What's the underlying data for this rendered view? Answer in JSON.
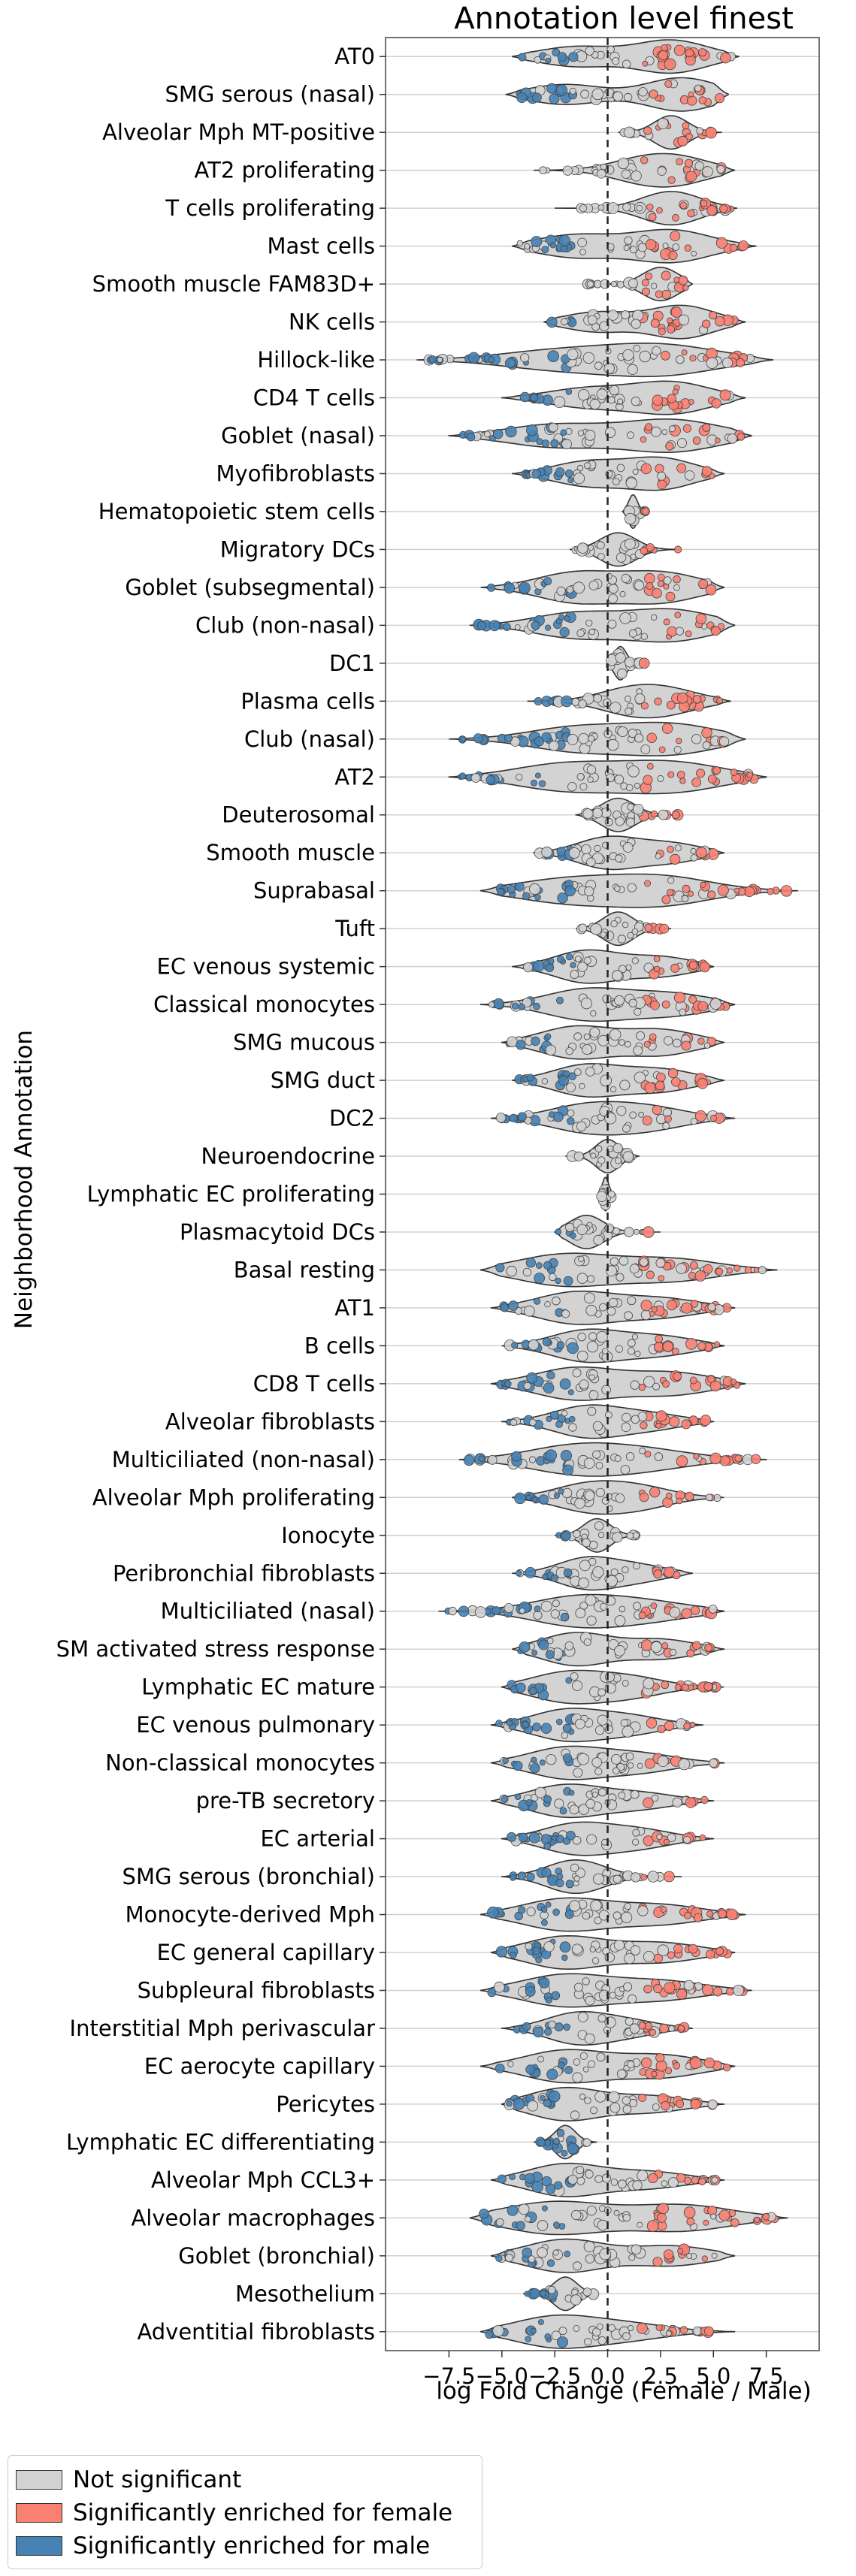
{
  "chart_data": {
    "type": "violin",
    "title": "Annotation level finest",
    "xlabel": "log Fold Change (Female / Male)",
    "ylabel": "Neighborhood Annotation",
    "xlim": [
      -10.5,
      10.0
    ],
    "xticks": [
      -7.5,
      -5.0,
      -2.5,
      0.0,
      2.5,
      5.0,
      7.5
    ],
    "xtick_labels": [
      "−7.5",
      "−5.0",
      "−2.5",
      "0.0",
      "2.5",
      "5.0",
      "7.5"
    ],
    "reference_line_x": 0,
    "grid": "horizontal",
    "legend_position": "below",
    "legend": [
      {
        "label": "Not significant",
        "color": "#d3d3d3"
      },
      {
        "label": "Significantly enriched for female",
        "color": "#fa8072"
      },
      {
        "label": "Significantly enriched for male",
        "color": "#4682b4"
      }
    ],
    "categories": [
      {
        "name": "AT0",
        "min": -4.5,
        "max": 6.2,
        "modes": [
          [
            -1.5,
            0.6
          ],
          [
            3.0,
            1.0
          ]
        ]
      },
      {
        "name": "SMG serous (nasal)",
        "min": -4.8,
        "max": 5.7,
        "modes": [
          [
            -2.0,
            0.6
          ],
          [
            3.5,
            1.0
          ]
        ]
      },
      {
        "name": "Alveolar Mph MT-positive",
        "min": 0.5,
        "max": 5.4,
        "modes": [
          [
            3.0,
            1.0
          ]
        ]
      },
      {
        "name": "AT2 proliferating",
        "min": -3.5,
        "max": 6.0,
        "modes": [
          [
            1.5,
            0.7
          ],
          [
            3.5,
            0.8
          ]
        ]
      },
      {
        "name": "T cells proliferating",
        "min": -2.5,
        "max": 6.1,
        "modes": [
          [
            3.0,
            1.0
          ]
        ]
      },
      {
        "name": "Mast cells",
        "min": -4.5,
        "max": 7.0,
        "modes": [
          [
            -1.5,
            0.7
          ],
          [
            3.0,
            1.0
          ]
        ]
      },
      {
        "name": "Smooth muscle FAM83D+",
        "min": -1.2,
        "max": 4.0,
        "modes": [
          [
            2.5,
            1.0
          ]
        ]
      },
      {
        "name": "NK cells",
        "min": -3.0,
        "max": 6.5,
        "modes": [
          [
            -0.5,
            0.6
          ],
          [
            3.5,
            1.0
          ]
        ]
      },
      {
        "name": "Hillock-like",
        "min": -9.0,
        "max": 7.8,
        "modes": [
          [
            -2.5,
            0.6
          ],
          [
            2.5,
            1.0
          ]
        ]
      },
      {
        "name": "CD4 T cells",
        "min": -5.0,
        "max": 6.5,
        "modes": [
          [
            -1.0,
            0.6
          ],
          [
            3.0,
            1.0
          ]
        ]
      },
      {
        "name": "Goblet (nasal)",
        "min": -7.5,
        "max": 6.8,
        "modes": [
          [
            -2.5,
            0.7
          ],
          [
            3.0,
            1.0
          ]
        ]
      },
      {
        "name": "Myofibroblasts",
        "min": -4.5,
        "max": 5.5,
        "modes": [
          [
            -1.0,
            0.7
          ],
          [
            2.5,
            0.9
          ]
        ]
      },
      {
        "name": "Hematopoietic stem cells",
        "min": 0.7,
        "max": 2.0,
        "modes": [
          [
            1.2,
            1.0
          ]
        ]
      },
      {
        "name": "Migratory DCs",
        "min": -1.8,
        "max": 3.5,
        "modes": [
          [
            0.5,
            1.0
          ]
        ]
      },
      {
        "name": "Goblet (subsegmental)",
        "min": -6.0,
        "max": 5.5,
        "modes": [
          [
            -1.5,
            0.9
          ],
          [
            2.5,
            0.9
          ]
        ]
      },
      {
        "name": "Club (non-nasal)",
        "min": -6.5,
        "max": 6.0,
        "modes": [
          [
            -1.5,
            0.8
          ],
          [
            3.0,
            1.0
          ]
        ]
      },
      {
        "name": "DC1",
        "min": 0.0,
        "max": 1.8,
        "modes": [
          [
            0.6,
            1.0
          ]
        ]
      },
      {
        "name": "Plasma cells",
        "min": -3.8,
        "max": 5.8,
        "modes": [
          [
            1.0,
            0.8
          ],
          [
            3.0,
            0.7
          ]
        ]
      },
      {
        "name": "Club (nasal)",
        "min": -7.5,
        "max": 6.5,
        "modes": [
          [
            -1.5,
            0.8
          ],
          [
            3.0,
            1.0
          ]
        ]
      },
      {
        "name": "AT2",
        "min": -7.5,
        "max": 7.5,
        "modes": [
          [
            -2.0,
            0.9
          ],
          [
            3.0,
            1.0
          ]
        ]
      },
      {
        "name": "Deuterosomal",
        "min": -1.5,
        "max": 3.5,
        "modes": [
          [
            0.5,
            1.0
          ]
        ]
      },
      {
        "name": "Smooth muscle",
        "min": -3.5,
        "max": 5.5,
        "modes": [
          [
            0.0,
            1.0
          ],
          [
            3.0,
            0.6
          ]
        ]
      },
      {
        "name": "Suprabasal",
        "min": -6.0,
        "max": 9.0,
        "modes": [
          [
            -2.0,
            0.8
          ],
          [
            2.5,
            1.0
          ]
        ]
      },
      {
        "name": "Tuft",
        "min": -1.5,
        "max": 3.0,
        "modes": [
          [
            0.5,
            1.0
          ]
        ]
      },
      {
        "name": "EC venous systemic",
        "min": -4.5,
        "max": 5.0,
        "modes": [
          [
            -1.0,
            1.0
          ],
          [
            2.5,
            0.6
          ]
        ]
      },
      {
        "name": "Classical monocytes",
        "min": -6.0,
        "max": 6.0,
        "modes": [
          [
            -1.0,
            1.0
          ],
          [
            3.0,
            0.7
          ]
        ]
      },
      {
        "name": "SMG mucous",
        "min": -5.0,
        "max": 5.5,
        "modes": [
          [
            -1.5,
            1.0
          ],
          [
            2.5,
            0.8
          ]
        ]
      },
      {
        "name": "SMG duct",
        "min": -4.5,
        "max": 5.5,
        "modes": [
          [
            -1.0,
            1.0
          ],
          [
            2.5,
            0.7
          ]
        ]
      },
      {
        "name": "DC2",
        "min": -5.5,
        "max": 6.0,
        "modes": [
          [
            -1.0,
            1.0
          ],
          [
            2.0,
            0.8
          ]
        ]
      },
      {
        "name": "Neuroendocrine",
        "min": -2.0,
        "max": 1.5,
        "modes": [
          [
            0.0,
            1.0
          ]
        ]
      },
      {
        "name": "Lymphatic EC proliferating",
        "min": -0.3,
        "max": 0.2,
        "modes": [
          [
            -0.1,
            1.0
          ]
        ]
      },
      {
        "name": "Plasmacytoid DCs",
        "min": -2.5,
        "max": 2.5,
        "modes": [
          [
            -1.0,
            1.0
          ]
        ]
      },
      {
        "name": "Basal resting",
        "min": -6.0,
        "max": 8.0,
        "modes": [
          [
            -2.0,
            1.0
          ],
          [
            3.0,
            0.7
          ]
        ]
      },
      {
        "name": "AT1",
        "min": -5.5,
        "max": 6.0,
        "modes": [
          [
            -1.5,
            1.0
          ],
          [
            2.5,
            0.6
          ]
        ]
      },
      {
        "name": "B cells",
        "min": -5.0,
        "max": 5.5,
        "modes": [
          [
            -1.0,
            1.0
          ],
          [
            2.5,
            0.6
          ]
        ]
      },
      {
        "name": "CD8 T cells",
        "min": -5.5,
        "max": 6.5,
        "modes": [
          [
            -1.5,
            1.0
          ],
          [
            3.0,
            0.7
          ]
        ]
      },
      {
        "name": "Alveolar fibroblasts",
        "min": -5.0,
        "max": 5.0,
        "modes": [
          [
            -1.0,
            1.0
          ],
          [
            2.0,
            0.5
          ]
        ]
      },
      {
        "name": "Multiciliated (non-nasal)",
        "min": -7.0,
        "max": 7.5,
        "modes": [
          [
            -1.5,
            1.0
          ],
          [
            2.0,
            0.6
          ]
        ]
      },
      {
        "name": "Alveolar Mph proliferating",
        "min": -4.5,
        "max": 5.5,
        "modes": [
          [
            -1.0,
            1.0
          ],
          [
            1.5,
            0.8
          ]
        ]
      },
      {
        "name": "Ionocyte",
        "min": -2.5,
        "max": 1.5,
        "modes": [
          [
            -0.5,
            1.0
          ]
        ]
      },
      {
        "name": "Peribronchial fibroblasts",
        "min": -4.5,
        "max": 4.0,
        "modes": [
          [
            -1.0,
            1.0
          ],
          [
            1.5,
            0.5
          ]
        ]
      },
      {
        "name": "Multiciliated (nasal)",
        "min": -8.0,
        "max": 5.5,
        "modes": [
          [
            -1.5,
            1.0
          ],
          [
            2.0,
            0.6
          ]
        ]
      },
      {
        "name": "SM activated stress response",
        "min": -4.5,
        "max": 5.5,
        "modes": [
          [
            -1.5,
            1.0
          ],
          [
            2.5,
            0.6
          ]
        ]
      },
      {
        "name": "Lymphatic EC mature",
        "min": -5.0,
        "max": 5.5,
        "modes": [
          [
            -2.0,
            1.0
          ],
          [
            1.0,
            0.7
          ]
        ]
      },
      {
        "name": "EC venous pulmonary",
        "min": -5.5,
        "max": 4.5,
        "modes": [
          [
            -2.0,
            1.0
          ],
          [
            1.0,
            0.6
          ]
        ]
      },
      {
        "name": "Non-classical monocytes",
        "min": -5.5,
        "max": 5.5,
        "modes": [
          [
            -2.0,
            1.0
          ],
          [
            1.5,
            0.6
          ]
        ]
      },
      {
        "name": "pre-TB secretory",
        "min": -5.5,
        "max": 5.0,
        "modes": [
          [
            -2.0,
            1.0
          ],
          [
            1.5,
            0.5
          ]
        ]
      },
      {
        "name": "EC arterial",
        "min": -5.0,
        "max": 5.0,
        "modes": [
          [
            -1.5,
            1.0
          ],
          [
            1.5,
            0.6
          ]
        ]
      },
      {
        "name": "SMG serous (bronchial)",
        "min": -5.0,
        "max": 3.5,
        "modes": [
          [
            -1.5,
            1.0
          ]
        ]
      },
      {
        "name": "Monocyte-derived Mph",
        "min": -6.0,
        "max": 6.5,
        "modes": [
          [
            -2.0,
            1.0
          ],
          [
            2.5,
            0.6
          ]
        ]
      },
      {
        "name": "EC general capillary",
        "min": -5.5,
        "max": 6.0,
        "modes": [
          [
            -2.0,
            1.0
          ],
          [
            2.5,
            0.6
          ]
        ]
      },
      {
        "name": "Subpleural fibroblasts",
        "min": -6.0,
        "max": 6.8,
        "modes": [
          [
            -2.0,
            1.0
          ],
          [
            2.5,
            0.6
          ]
        ]
      },
      {
        "name": "Interstitial Mph perivascular",
        "min": -5.0,
        "max": 4.0,
        "modes": [
          [
            -1.5,
            1.0
          ],
          [
            1.0,
            0.5
          ]
        ]
      },
      {
        "name": "EC aerocyte capillary",
        "min": -6.0,
        "max": 6.0,
        "modes": [
          [
            -2.0,
            1.0
          ],
          [
            2.5,
            0.7
          ]
        ]
      },
      {
        "name": "Pericytes",
        "min": -5.0,
        "max": 5.5,
        "modes": [
          [
            -2.0,
            1.0
          ],
          [
            2.0,
            0.5
          ]
        ]
      },
      {
        "name": "Lymphatic EC differentiating",
        "min": -3.5,
        "max": -0.5,
        "modes": [
          [
            -2.0,
            1.0
          ]
        ]
      },
      {
        "name": "Alveolar Mph CCL3+",
        "min": -5.5,
        "max": 5.5,
        "modes": [
          [
            -2.0,
            1.0
          ],
          [
            2.0,
            0.5
          ]
        ]
      },
      {
        "name": "Alveolar macrophages",
        "min": -6.5,
        "max": 8.5,
        "modes": [
          [
            -2.5,
            1.0
          ],
          [
            3.5,
            0.8
          ]
        ]
      },
      {
        "name": "Goblet (bronchial)",
        "min": -5.5,
        "max": 6.0,
        "modes": [
          [
            -2.0,
            1.0
          ],
          [
            3.0,
            0.6
          ]
        ]
      },
      {
        "name": "Mesothelium",
        "min": -4.0,
        "max": -0.5,
        "modes": [
          [
            -2.0,
            1.0
          ]
        ]
      },
      {
        "name": "Adventitial fibroblasts",
        "min": -6.0,
        "max": 6.0,
        "modes": [
          [
            -2.5,
            1.0
          ],
          [
            1.0,
            0.5
          ]
        ]
      }
    ]
  }
}
